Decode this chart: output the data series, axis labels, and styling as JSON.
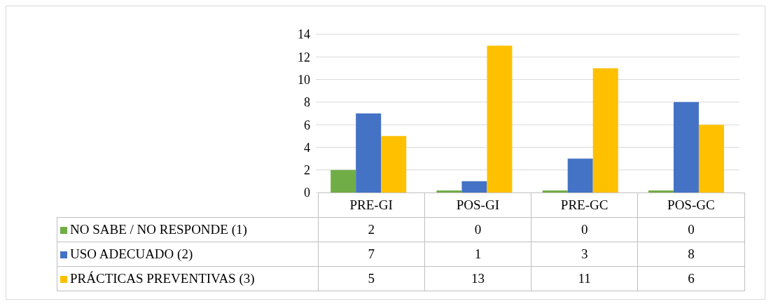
{
  "chart_data": {
    "type": "bar",
    "categories": [
      "PRE-GI",
      "POS-GI",
      "PRE-GC",
      "POS-GC"
    ],
    "series": [
      {
        "name": "NO SABE / NO RESPONDE (1)",
        "color": "#70ad47",
        "values": [
          2,
          0,
          0,
          0
        ]
      },
      {
        "name": "USO ADECUADO (2)",
        "color": "#4472c4",
        "values": [
          7,
          1,
          3,
          8
        ]
      },
      {
        "name": "PRÁCTICAS PREVENTIVAS (3)",
        "color": "#ffc000",
        "values": [
          5,
          13,
          11,
          6
        ]
      }
    ],
    "ylim": [
      0,
      14
    ],
    "yticks": [
      0,
      2,
      4,
      6,
      8,
      10,
      12,
      14
    ],
    "grid": "y",
    "legend": "bottom",
    "data_labels": true
  }
}
